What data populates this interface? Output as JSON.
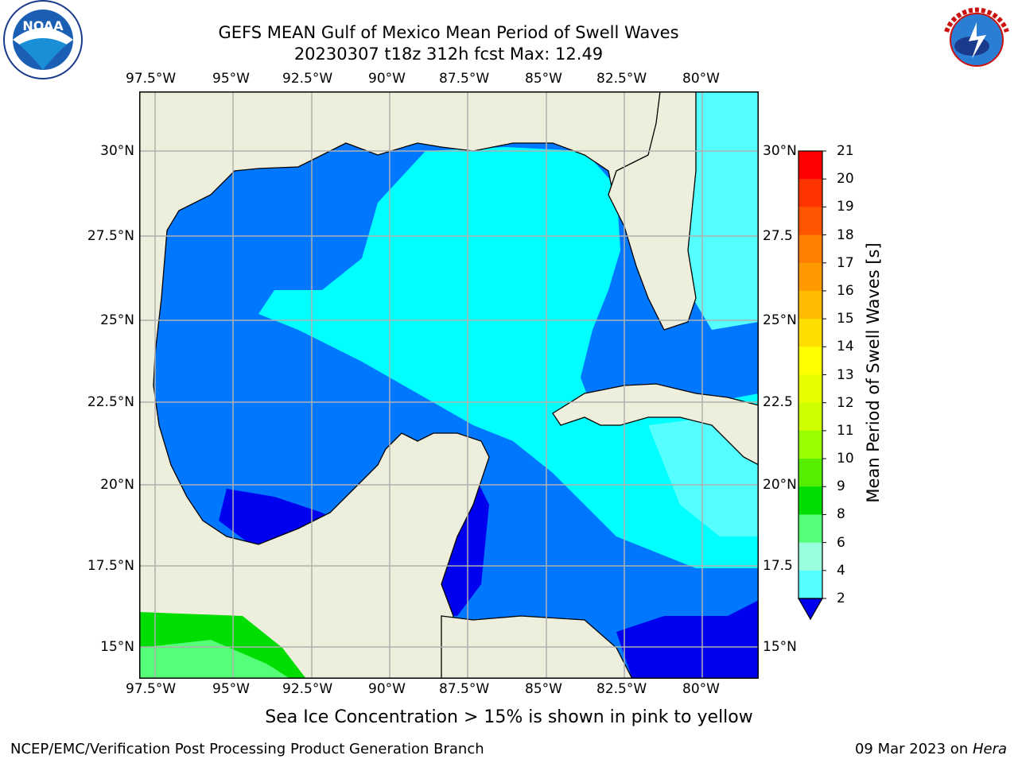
{
  "title_line1": "GEFS MEAN Gulf of Mexico Mean Period of Swell Waves",
  "title_line2": "20230307 t18z 312h fcst   Max: 12.49",
  "lon_labels": [
    "97.5°W",
    "95°W",
    "92.5°W",
    "90°W",
    "87.5°W",
    "85°W",
    "82.5°W",
    "80°W"
  ],
  "lat_labels_left": [
    "30°N",
    "27.5°N",
    "25°N",
    "22.5°N",
    "20°N",
    "17.5°N",
    "15°N"
  ],
  "lat_labels_right": [
    "30°N",
    "27.5",
    "25°N",
    "22.5",
    "20°N",
    "17.5",
    "15°N"
  ],
  "colorbar": {
    "label": "Mean Period of Swell Waves [s]",
    "ticks": [
      "21",
      "20",
      "19",
      "18",
      "17",
      "16",
      "15",
      "14",
      "13",
      "12",
      "11",
      "10",
      "9",
      "8",
      "6",
      "4",
      "2"
    ],
    "colors": [
      "#ff0000",
      "#ff3300",
      "#ff5500",
      "#ff7f00",
      "#ff9900",
      "#ffbb00",
      "#ffdd00",
      "#ffff00",
      "#e6ff00",
      "#ccff00",
      "#99ff00",
      "#55ee00",
      "#00dd00",
      "#55ff77",
      "#99ffdd",
      "#55ffff",
      "#00ffff",
      "#0077ff"
    ],
    "under_color": "#0000ee"
  },
  "caption": "Sea Ice Concentration > 15% is shown in pink to yellow",
  "footer_left": "NCEP/EMC/Verification Post Processing Product Generation Branch",
  "footer_right_date": "09 Mar 2023 on ",
  "footer_right_host": "Hera",
  "logos": {
    "left": "noaa-logo",
    "right": "nws-logo"
  },
  "colors": {
    "land": "#eeeedc",
    "grid": "#b0b0b0"
  }
}
